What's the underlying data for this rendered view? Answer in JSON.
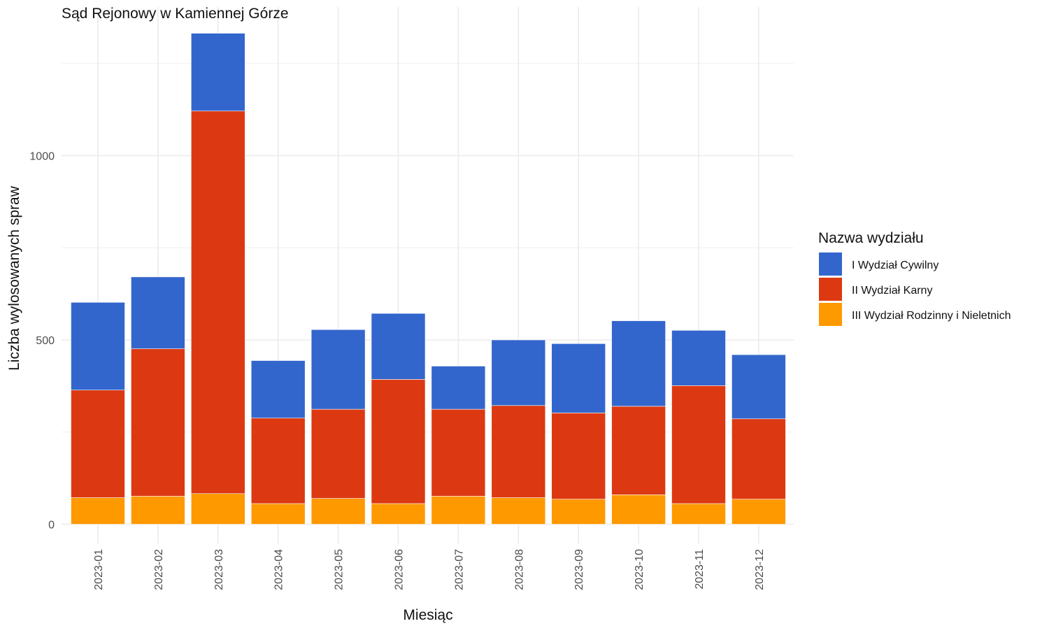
{
  "chart_data": {
    "type": "bar",
    "stacked": true,
    "title": "Sąd Rejonowy w Kamiennej Górze",
    "xlabel": "Miesiąc",
    "ylabel": "Liczba wylosowanych spraw",
    "categories": [
      "2023-01",
      "2023-02",
      "2023-03",
      "2023-04",
      "2023-05",
      "2023-06",
      "2023-07",
      "2023-08",
      "2023-09",
      "2023-10",
      "2023-11",
      "2023-12"
    ],
    "ylim": [
      -50,
      1400
    ],
    "yticks": [
      0,
      500,
      1000
    ],
    "ytick_labels": [
      "0",
      "500",
      "1000"
    ],
    "grid": true,
    "legend": {
      "title": "Nazwa wydziału",
      "position": "right"
    },
    "series": [
      {
        "name": "III Wydział Rodzinny i Nieletnich",
        "color": "#FF9900",
        "values": [
          72,
          76,
          83,
          56,
          70,
          56,
          76,
          72,
          68,
          80,
          56,
          68
        ]
      },
      {
        "name": "II Wydział Karny",
        "color": "#DC3912",
        "values": [
          292,
          400,
          1038,
          232,
          242,
          337,
          236,
          250,
          234,
          240,
          320,
          218
        ]
      },
      {
        "name": "I Wydział Cywilny",
        "color": "#3366CC",
        "values": [
          238,
          195,
          211,
          156,
          216,
          179,
          117,
          178,
          188,
          232,
          150,
          174
        ]
      }
    ],
    "legend_order": [
      2,
      1,
      0
    ]
  }
}
